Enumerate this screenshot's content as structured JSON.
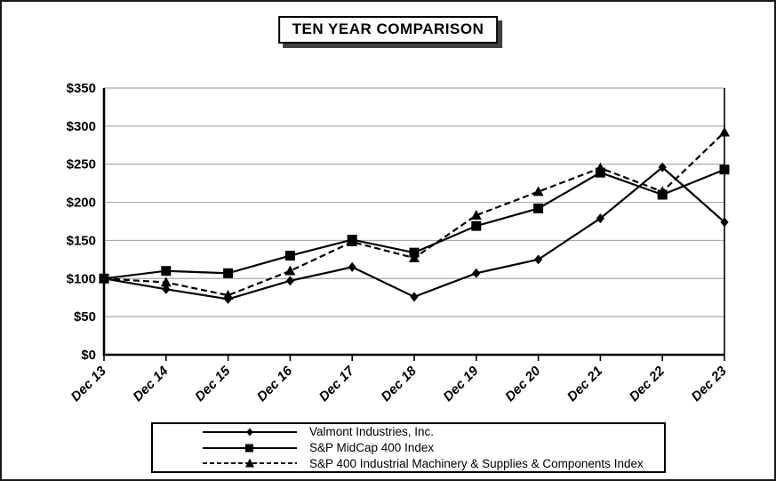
{
  "title": "TEN YEAR COMPARISON",
  "colors": {
    "background": "#ffffff",
    "line": "#000000",
    "grid": "#aaaaaa",
    "axis": "#000000",
    "frame_border": "#1a1a1a",
    "title_shadow": "#3f3f3f"
  },
  "chart_data": {
    "type": "line",
    "title": "TEN YEAR COMPARISON",
    "categories": [
      "Dec 13",
      "Dec 14",
      "Dec 15",
      "Dec 16",
      "Dec 17",
      "Dec 18",
      "Dec 19",
      "Dec 20",
      "Dec 21",
      "Dec 22",
      "Dec 23"
    ],
    "xlabel": "",
    "ylabel": "",
    "ylim": [
      0,
      350
    ],
    "y_tick_step": 50,
    "y_tick_labels": [
      "$0",
      "$50",
      "$100",
      "$150",
      "$200",
      "$250",
      "$300",
      "$350"
    ],
    "grid": true,
    "legend_position": "bottom",
    "series": [
      {
        "name": "Valmont Industries, Inc.",
        "marker": "diamond",
        "line": "solid",
        "color": "#000000",
        "values": [
          100,
          86,
          73,
          97,
          115,
          76,
          107,
          125,
          179,
          246,
          174
        ]
      },
      {
        "name": "S&P MidCap 400 Index",
        "marker": "square",
        "line": "solid",
        "color": "#000000",
        "values": [
          100,
          110,
          107,
          130,
          151,
          134,
          169,
          192,
          239,
          210,
          243
        ]
      },
      {
        "name": "S&P 400 Industrial Machinery & Supplies & Components Index",
        "marker": "triangle",
        "line": "dashed",
        "color": "#000000",
        "values": [
          100,
          95,
          78,
          110,
          148,
          127,
          183,
          214,
          245,
          214,
          292
        ]
      }
    ]
  }
}
